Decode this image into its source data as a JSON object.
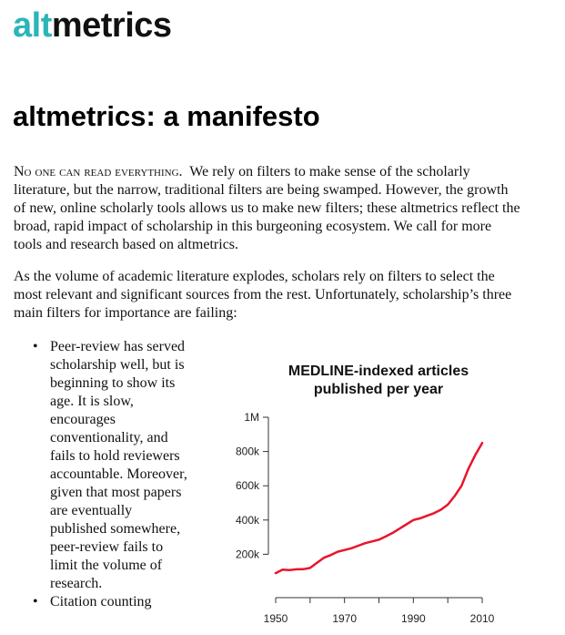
{
  "logo": {
    "part1": "alt",
    "part2": "metrics",
    "accent_color": "#2cb5b8"
  },
  "title": "altmetrics: a manifesto",
  "paragraph1": {
    "lead": "No one can read everything.",
    "text": "We rely on filters to make sense of the scholarly literature, but the narrow, traditional filters are being swamped. However, the growth of new, online scholarly tools allows us to make new filters; these altmetrics reflect the broad, rapid impact of scholarship in this burgeoning ecosystem. We call for more tools and research based on altmetrics."
  },
  "paragraph2": "As the volume of academic literature explodes, scholars rely on filters to select the most relevant and significant sources from the rest. Unfortunately, scholarship’s three main filters for importance are failing:",
  "bullets": [
    "Peer-review has served scholarship well, but is beginning to show its age. It is slow, encourages conventionality, and fails to hold reviewers accountable. Moreover, given that most papers are eventually published somewhere, peer-review fails to limit the volume of research.",
    "Citation counting"
  ],
  "chart_data": {
    "type": "line",
    "title": "MEDLINE-indexed articles published per year",
    "xlabel": "",
    "ylabel": "",
    "xlim": [
      1950,
      2010
    ],
    "ylim": [
      0,
      1000000
    ],
    "x_ticks": [
      1950,
      1970,
      1990,
      2010
    ],
    "y_ticks": [
      200000,
      400000,
      600000,
      800000,
      1000000
    ],
    "y_tick_labels": [
      "200k",
      "400k",
      "600k",
      "800k",
      "1M"
    ],
    "grid": false,
    "line_color": "#e8152a",
    "series": [
      {
        "x": [
          1950,
          1952,
          1954,
          1956,
          1958,
          1960,
          1962,
          1964,
          1966,
          1968,
          1970,
          1972,
          1974,
          1976,
          1978,
          1980,
          1982,
          1984,
          1986,
          1988,
          1990,
          1992,
          1994,
          1996,
          1998,
          2000,
          2002,
          2004,
          2006,
          2008,
          2010
        ],
        "values": [
          90000,
          110000,
          108000,
          112000,
          113000,
          120000,
          150000,
          180000,
          195000,
          215000,
          225000,
          235000,
          250000,
          265000,
          275000,
          285000,
          305000,
          325000,
          350000,
          375000,
          400000,
          410000,
          425000,
          440000,
          460000,
          490000,
          540000,
          600000,
          700000,
          780000,
          850000
        ]
      }
    ]
  }
}
